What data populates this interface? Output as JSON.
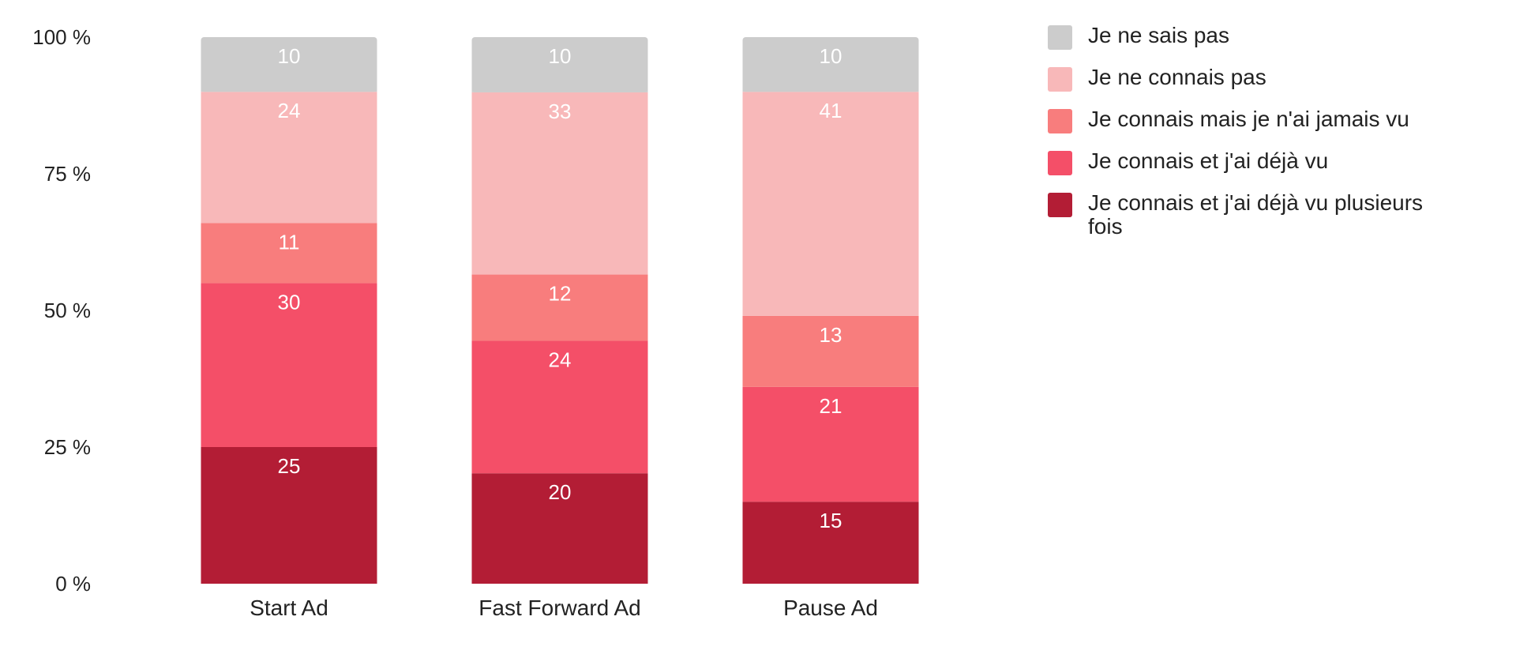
{
  "chart_data": {
    "type": "bar",
    "stacked": true,
    "categories": [
      "Start Ad",
      "Fast Forward Ad",
      "Pause Ad"
    ],
    "series": [
      {
        "name": "Je connais et j'ai déjà vu plusieurs fois",
        "color": "#b31d35",
        "values": [
          25,
          20,
          15
        ]
      },
      {
        "name": "Je connais et j'ai déjà vu",
        "color": "#f44f68",
        "values": [
          30,
          24,
          21
        ]
      },
      {
        "name": "Je connais mais je n'ai jamais vu",
        "color": "#f87d7d",
        "values": [
          11,
          12,
          13
        ]
      },
      {
        "name": "Je ne connais pas",
        "color": "#f8b8b9",
        "values": [
          24,
          33,
          41
        ]
      },
      {
        "name": "Je ne sais pas",
        "color": "#cccccc",
        "values": [
          10,
          10,
          10
        ]
      }
    ],
    "yticks": [
      "0 %",
      "25 %",
      "50 %",
      "75 %",
      "100 %"
    ],
    "ylim": [
      0,
      100
    ],
    "legend_position": "top-right",
    "legend_order": [
      "Je ne sais pas",
      "Je ne connais pas",
      "Je connais mais je n'ai jamais vu",
      "Je connais et j'ai déjà vu",
      "Je connais et j'ai déjà vu plusieurs fois"
    ],
    "grid": false
  }
}
